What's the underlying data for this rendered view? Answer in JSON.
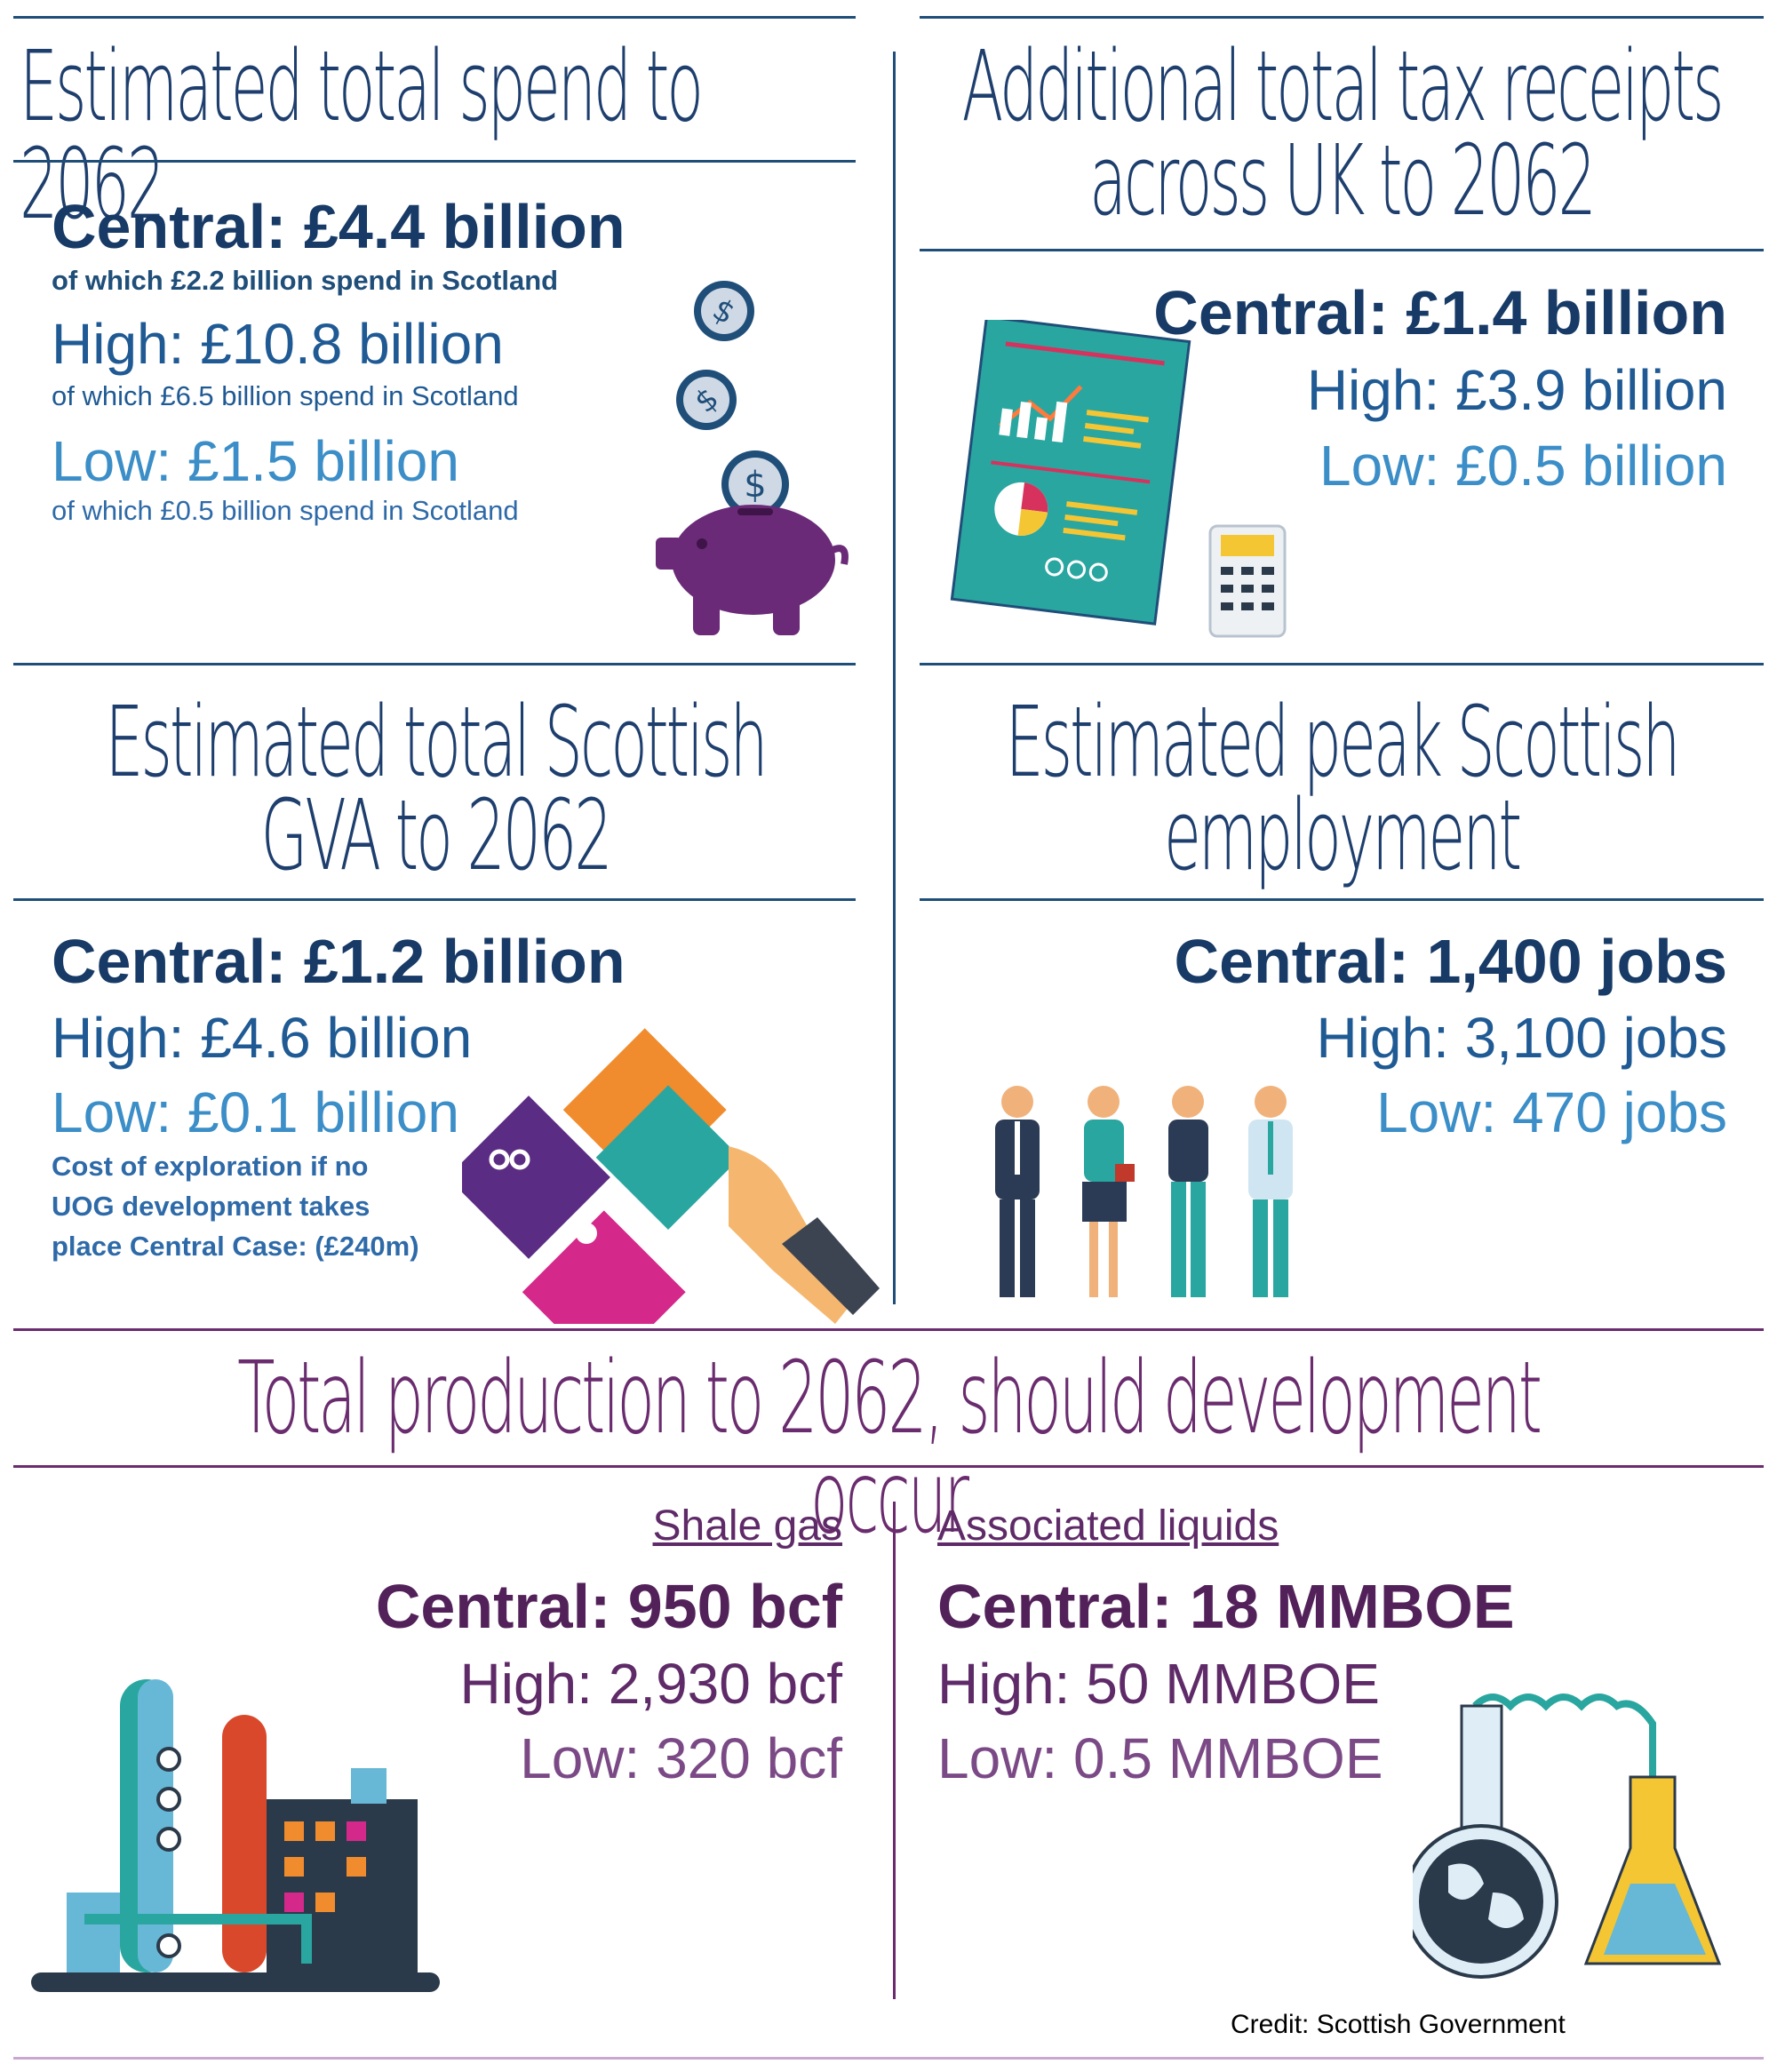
{
  "spend": {
    "title": "Estimated total spend to 2062",
    "central": "Central: £4.4 billion",
    "central_sub": "of which £2.2 billion spend in Scotland",
    "high": "High: £10.8 billion",
    "high_sub": "of which £6.5 billion spend in Scotland",
    "low": "Low: £1.5 billion",
    "low_sub": "of which £0.5 billion spend in Scotland"
  },
  "tax": {
    "title_line1": "Additional total tax receipts",
    "title_line2": "across UK to 2062",
    "central": "Central: £1.4 billion",
    "high": "High: £3.9 billion",
    "low": "Low: £0.5 billion"
  },
  "gva": {
    "title_line1": "Estimated total Scottish",
    "title_line2": "GVA to 2062",
    "central": "Central: £1.2 billion",
    "high": "High: £4.6 billion",
    "low": "Low: £0.1 billion",
    "note_line1": "Cost of exploration if no",
    "note_line2": "UOG development takes",
    "note_line3": "place Central Case: (£240m)"
  },
  "employment": {
    "title_line1": "Estimated peak Scottish",
    "title_line2": "employment",
    "central": "Central: 1,400 jobs",
    "high": "High: 3,100 jobs",
    "low": "Low: 470 jobs"
  },
  "production": {
    "title": "Total production to 2062, should development occur",
    "shale": {
      "label": "Shale gas",
      "central": "Central: 950 bcf",
      "high": "High: 2,930 bcf",
      "low": "Low: 320 bcf"
    },
    "liquids": {
      "label": "Associated liquids",
      "central": "Central: 18 MMBOE",
      "high": "High: 50 MMBOE",
      "low": "Low: 0.5 MMBOE"
    }
  },
  "credit": "Credit: Scottish Government",
  "colors": {
    "navy": "#173a66",
    "blue": "#1f5a94",
    "light_blue": "#3b8ec7",
    "purple": "#53215a",
    "rule_blue": "#1f4e79",
    "rule_purple": "#6a2c6e"
  },
  "icons": [
    "coin-icon",
    "piggy-bank-icon",
    "report-document-icon",
    "calculator-icon",
    "puzzle-hand-icon",
    "people-icon",
    "refinery-icon",
    "flask-globe-icon"
  ]
}
